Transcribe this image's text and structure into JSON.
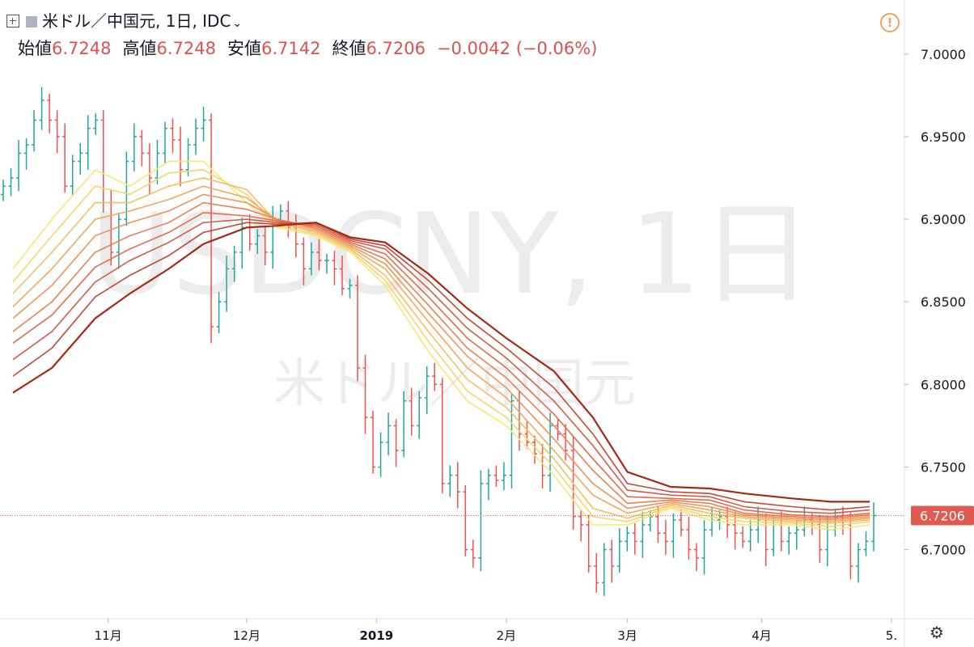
{
  "header": {
    "symbol_title": "米ドル／中国元, 1日, IDC",
    "open_label": "始値",
    "open_value": "6.7248",
    "high_label": "高値",
    "high_value": "6.7248",
    "low_label": "安値",
    "low_value": "6.7142",
    "close_label": "終値",
    "close_value": "6.7206",
    "change_text": "−0.0042 (−0.06%)"
  },
  "watermark": {
    "line1": "USDCNY, 1日",
    "line2": "米ドル／中国元"
  },
  "icons": {
    "add": "plus-square-icon",
    "flag": "flag-icon",
    "dropdown": "chevron-down-icon",
    "alert": "alert-icon",
    "settings": "gear-icon"
  },
  "colors": {
    "up": "#26a69a",
    "down": "#ef5350",
    "last_price": "#e05a4f",
    "ribbon_fast": "#f5e06e",
    "ribbon_slow": "#a52a14"
  },
  "chart_data": {
    "type": "line",
    "title": "",
    "ylim": [
      6.6582,
      7.0327
    ],
    "yticks": [
      "7.0000",
      "6.9500",
      "6.9000",
      "6.8500",
      "6.8000",
      "6.7500",
      "6.7000"
    ],
    "last_price_label": "6.7206",
    "xticks": [
      {
        "label": "11月",
        "x": "2018-11-01"
      },
      {
        "label": "12月",
        "x": "2018-12-03"
      },
      {
        "label": "2019",
        "x": "2019-01-02"
      },
      {
        "label": "2月",
        "x": "2019-02-01"
      },
      {
        "label": "3月",
        "x": "2019-03-01"
      },
      {
        "label": "4月",
        "x": "2019-04-01"
      },
      {
        "label": "5.",
        "x": "2019-05-01"
      }
    ],
    "x": [
      "2018-10-10",
      "2018-10-19",
      "2018-10-29",
      "2018-11-06",
      "2018-11-15",
      "2018-11-23",
      "2018-12-03",
      "2018-12-10",
      "2018-12-19",
      "2018-12-27",
      "2019-01-04",
      "2019-01-14",
      "2019-01-23",
      "2019-02-01",
      "2019-02-12",
      "2019-02-21",
      "2019-03-01",
      "2019-03-11",
      "2019-03-20",
      "2019-03-28",
      "2019-04-08",
      "2019-04-17",
      "2019-04-26"
    ],
    "series": [
      {
        "values": [
          6.87,
          6.9,
          6.93,
          6.92,
          6.935,
          6.935,
          6.91,
          6.895,
          6.89,
          6.88,
          6.86,
          6.82,
          6.79,
          6.775,
          6.745,
          6.715,
          6.715,
          6.725,
          6.718,
          6.715,
          6.715,
          6.712,
          6.715
        ]
      },
      {
        "values": [
          6.862,
          6.89,
          6.92,
          6.915,
          6.928,
          6.93,
          6.915,
          6.896,
          6.891,
          6.881,
          6.863,
          6.826,
          6.796,
          6.78,
          6.75,
          6.72,
          6.717,
          6.726,
          6.72,
          6.717,
          6.716,
          6.714,
          6.717
        ]
      },
      {
        "values": [
          6.855,
          6.88,
          6.91,
          6.91,
          6.92,
          6.925,
          6.918,
          6.898,
          6.892,
          6.882,
          6.866,
          6.832,
          6.803,
          6.786,
          6.755,
          6.725,
          6.719,
          6.727,
          6.722,
          6.719,
          6.717,
          6.716,
          6.718
        ]
      },
      {
        "values": [
          6.847,
          6.87,
          6.9,
          6.905,
          6.912,
          6.92,
          6.913,
          6.899,
          6.893,
          6.883,
          6.87,
          6.838,
          6.81,
          6.792,
          6.76,
          6.733,
          6.722,
          6.728,
          6.724,
          6.72,
          6.718,
          6.717,
          6.719
        ]
      },
      {
        "values": [
          6.84,
          6.86,
          6.89,
          6.898,
          6.905,
          6.915,
          6.91,
          6.9,
          6.894,
          6.884,
          6.873,
          6.843,
          6.817,
          6.798,
          6.767,
          6.74,
          6.725,
          6.729,
          6.726,
          6.721,
          6.719,
          6.718,
          6.72
        ]
      },
      {
        "values": [
          6.832,
          6.85,
          6.88,
          6.89,
          6.898,
          6.91,
          6.906,
          6.9,
          6.895,
          6.885,
          6.876,
          6.848,
          6.822,
          6.804,
          6.775,
          6.748,
          6.728,
          6.73,
          6.728,
          6.722,
          6.72,
          6.719,
          6.721
        ]
      },
      {
        "values": [
          6.825,
          6.842,
          6.871,
          6.882,
          6.892,
          6.904,
          6.902,
          6.899,
          6.896,
          6.886,
          6.879,
          6.853,
          6.828,
          6.81,
          6.782,
          6.755,
          6.732,
          6.731,
          6.73,
          6.724,
          6.721,
          6.72,
          6.722
        ]
      },
      {
        "values": [
          6.815,
          6.832,
          6.862,
          6.875,
          6.886,
          6.898,
          6.9,
          6.898,
          6.897,
          6.887,
          6.882,
          6.858,
          6.834,
          6.816,
          6.79,
          6.763,
          6.736,
          6.733,
          6.732,
          6.726,
          6.723,
          6.722,
          6.724
        ]
      },
      {
        "values": [
          6.805,
          6.822,
          6.853,
          6.866,
          6.878,
          6.892,
          6.898,
          6.897,
          6.898,
          6.888,
          6.884,
          6.863,
          6.84,
          6.822,
          6.798,
          6.77,
          6.74,
          6.735,
          6.734,
          6.729,
          6.726,
          6.724,
          6.726
        ]
      },
      {
        "values": [
          6.795,
          6.81,
          6.84,
          6.855,
          6.87,
          6.885,
          6.895,
          6.896,
          6.898,
          6.889,
          6.886,
          6.867,
          6.846,
          6.828,
          6.808,
          6.78,
          6.747,
          6.738,
          6.737,
          6.734,
          6.731,
          6.729,
          6.729
        ]
      }
    ],
    "bar_close": [
      6.92,
      6.925,
      6.94,
      6.945,
      6.96,
      6.972,
      6.96,
      6.95,
      6.92,
      6.935,
      6.94,
      6.955,
      6.96,
      6.91,
      6.88,
      6.9,
      6.935,
      6.95,
      6.94,
      6.925,
      6.94,
      6.955,
      6.948,
      6.93,
      6.945,
      6.955,
      6.96,
      6.835,
      6.85,
      6.87,
      6.88,
      6.895,
      6.885,
      6.89,
      6.88,
      6.9,
      6.905,
      6.895,
      6.885,
      6.87,
      6.88,
      6.875,
      6.875,
      6.87,
      6.858,
      6.86,
      6.81,
      6.78,
      6.75,
      6.765,
      6.775,
      6.76,
      6.79,
      6.775,
      6.792,
      6.805,
      6.8,
      6.74,
      6.745,
      6.735,
      6.7,
      6.695,
      6.74,
      6.745,
      6.742,
      6.745,
      6.79,
      6.77,
      6.765,
      6.758,
      6.745,
      6.775,
      6.77,
      6.76,
      6.72,
      6.715,
      6.69,
      6.68,
      6.7,
      6.69,
      6.705,
      6.71,
      6.705,
      6.715,
      6.72,
      6.71,
      6.705,
      6.718,
      6.712,
      6.7,
      6.695,
      6.712,
      6.718,
      6.72,
      6.715,
      6.71,
      6.705,
      6.712,
      6.718,
      6.7,
      6.715,
      6.705,
      6.71,
      6.712,
      6.718,
      6.715,
      6.7,
      6.712,
      6.72,
      6.715,
      6.69,
      6.7,
      6.705,
      6.7206
    ]
  }
}
